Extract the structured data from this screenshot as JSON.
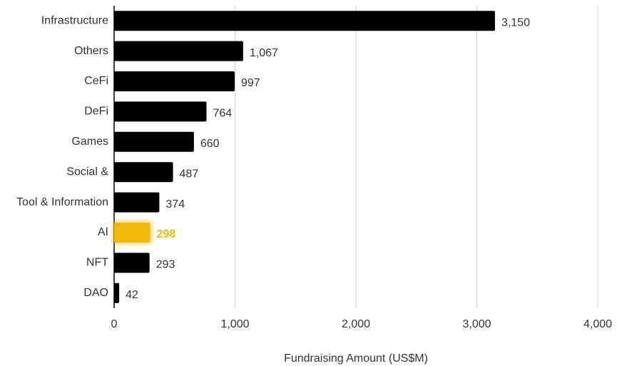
{
  "chart_data": {
    "type": "hbar",
    "x_label": "Fundraising Amount (US$M)",
    "categories": [
      "Infrastructure",
      "Others",
      "CeFi",
      "DeFi",
      "Games",
      "Social &",
      "Tool & Information",
      "AI",
      "NFT",
      "DAO"
    ],
    "values": [
      3150,
      1067,
      997,
      764,
      660,
      487,
      374,
      298,
      293,
      42
    ],
    "value_labels": [
      "3,150",
      "1,067",
      "997",
      "764",
      "660",
      "487",
      "374",
      "298",
      "293",
      "42"
    ],
    "colors": [
      "#000000",
      "#000000",
      "#000000",
      "#000000",
      "#000000",
      "#000000",
      "#000000",
      "#f0b90b",
      "#000000",
      "#000000"
    ],
    "xlim": [
      0,
      4000
    ],
    "xticks": [
      0,
      {
        "value": 1000,
        "label": "1,000"
      },
      {
        "value": 2000,
        "label": "2,000"
      },
      {
        "value": 3000,
        "label": "3,000"
      },
      {
        "value": 4000,
        "label": "4,000"
      }
    ],
    "grid": true
  }
}
